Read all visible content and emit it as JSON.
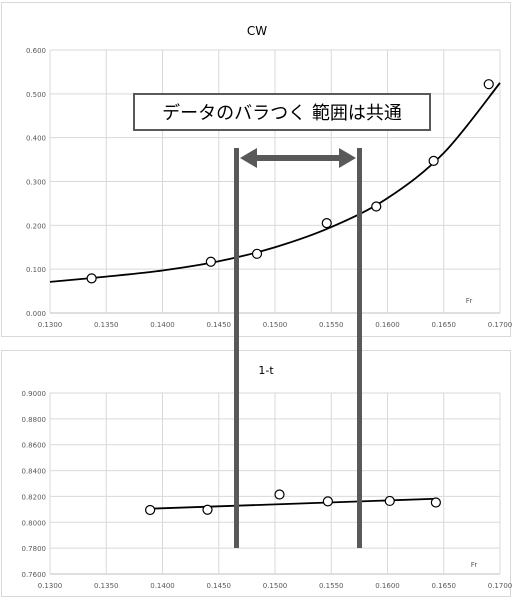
{
  "colors": {
    "background": "#ffffff",
    "panel_border": "#d9d9d9",
    "grid": "#d9d9d9",
    "axis_text": "#595959",
    "curve": "#000000",
    "marker_stroke": "#000000",
    "bracket": "#595959",
    "callout_border": "#595959",
    "callout_text": "#000000"
  },
  "annotation": {
    "text": "データのバラつく 範囲は共通",
    "span_fr": [
      0.1465,
      0.1575
    ],
    "arrow_icon": "double-headed-arrow-icon"
  },
  "chart_data": [
    {
      "type": "scatter",
      "title": "CW",
      "xlabel": "Fr",
      "ylabel": "",
      "xlim": [
        0.13,
        0.17
      ],
      "ylim": [
        0.0,
        0.6
      ],
      "x_ticks": [
        "0.1300",
        "0.1350",
        "0.1400",
        "0.1450",
        "0.1500",
        "0.1550",
        "0.1600",
        "0.1650",
        "0.1700"
      ],
      "y_ticks": [
        "0.000",
        "0.100",
        "0.200",
        "0.300",
        "0.400",
        "0.500",
        "0.600"
      ],
      "grid": true,
      "legend": "none",
      "points": {
        "x": [
          0.1337,
          0.1443,
          0.1484,
          0.1546,
          0.159,
          0.1641,
          0.169
        ],
        "y": [
          0.079,
          0.117,
          0.135,
          0.205,
          0.243,
          0.347,
          0.522
        ]
      },
      "trendline": {
        "kind": "exponential",
        "x": [
          0.13,
          0.135,
          0.14,
          0.145,
          0.15,
          0.155,
          0.16,
          0.165,
          0.17
        ],
        "y": [
          0.071,
          0.083,
          0.097,
          0.118,
          0.15,
          0.196,
          0.262,
          0.365,
          0.525
        ]
      }
    },
    {
      "type": "scatter",
      "title": "1-t",
      "xlabel": "Fr",
      "ylabel": "",
      "xlim": [
        0.13,
        0.17
      ],
      "ylim": [
        0.76,
        0.9
      ],
      "x_ticks": [
        "0.1300",
        "0.1350",
        "0.1400",
        "0.1450",
        "0.1500",
        "0.1550",
        "0.1600",
        "0.1650",
        "0.1700"
      ],
      "y_ticks": [
        "0.7600",
        "0.7800",
        "0.8000",
        "0.8200",
        "0.8400",
        "0.8600",
        "0.8800",
        "0.9000"
      ],
      "grid": true,
      "legend": "none",
      "points": {
        "x": [
          0.1389,
          0.144,
          0.1504,
          0.1547,
          0.1602,
          0.1643
        ],
        "y": [
          0.8095,
          0.8097,
          0.8215,
          0.8162,
          0.8165,
          0.8153
        ]
      },
      "trendline": {
        "kind": "linear",
        "x": [
          0.1389,
          0.1643
        ],
        "y": [
          0.8105,
          0.8182
        ]
      }
    }
  ]
}
